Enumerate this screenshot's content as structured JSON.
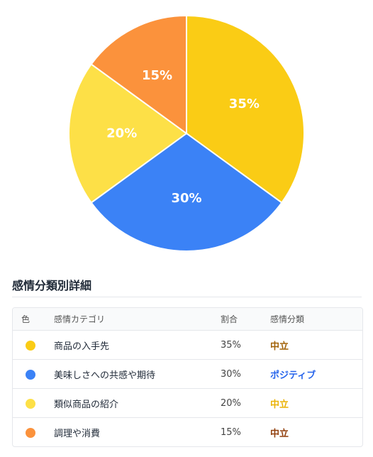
{
  "chart_data": {
    "type": "pie",
    "categories": [
      "商品の入手先",
      "美味しさへの共感や期待",
      "類似商品の紹介",
      "調理や消費"
    ],
    "values": [
      35,
      30,
      20,
      15
    ],
    "labels": [
      "35%",
      "30%",
      "20%",
      "15%"
    ],
    "colors": [
      "#FACC15",
      "#3B82F6",
      "#FDE047",
      "#FB923C"
    ]
  },
  "details": {
    "title": "感情分類別詳細",
    "headers": {
      "color": "色",
      "category": "感情カテゴリ",
      "ratio": "割合",
      "sentiment": "感情分類"
    },
    "rows": [
      {
        "dot_color": "#FACC15",
        "category": "商品の入手先",
        "ratio": "35%",
        "sentiment": "中立",
        "sentiment_color": "#A16207"
      },
      {
        "dot_color": "#3B82F6",
        "category": "美味しさへの共感や期待",
        "ratio": "30%",
        "sentiment": "ポジティブ",
        "sentiment_color": "#2563EB"
      },
      {
        "dot_color": "#FDE047",
        "category": "類似商品の紹介",
        "ratio": "20%",
        "sentiment": "中立",
        "sentiment_color": "#EAB308"
      },
      {
        "dot_color": "#FB923C",
        "category": "調理や消費",
        "ratio": "15%",
        "sentiment": "中立",
        "sentiment_color": "#92400E"
      }
    ]
  }
}
